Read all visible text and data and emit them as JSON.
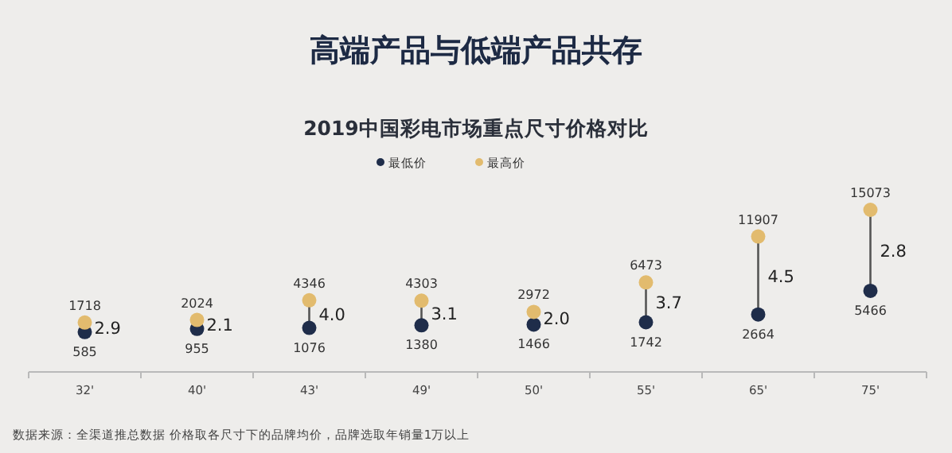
{
  "chart_data": {
    "type": "scatter",
    "title": "高端产品与低端产品共存",
    "subtitle": "2019中国彩电市场重点尺寸价格对比",
    "categories": [
      "32'",
      "40'",
      "43'",
      "49'",
      "50'",
      "55'",
      "65'",
      "75'"
    ],
    "series": [
      {
        "name": "最低价",
        "color": "#1f2d4a",
        "values": [
          585,
          955,
          1076,
          1380,
          1466,
          1742,
          2664,
          5466
        ]
      },
      {
        "name": "最高价",
        "color": "#e2bb6e",
        "values": [
          1718,
          2024,
          4346,
          4303,
          2972,
          6473,
          11907,
          15073
        ]
      }
    ],
    "data_labels": true,
    "legend": "top",
    "marker": "circle",
    "annotations": [
      "2.9",
      "2.1",
      "4.0",
      "3.1",
      "2.0",
      "3.7",
      "4.5",
      "2.8",
      "数据来源：全渠道推总数据 价格取各尺寸下的品牌均价，品牌选取年销量1万以上"
    ]
  }
}
